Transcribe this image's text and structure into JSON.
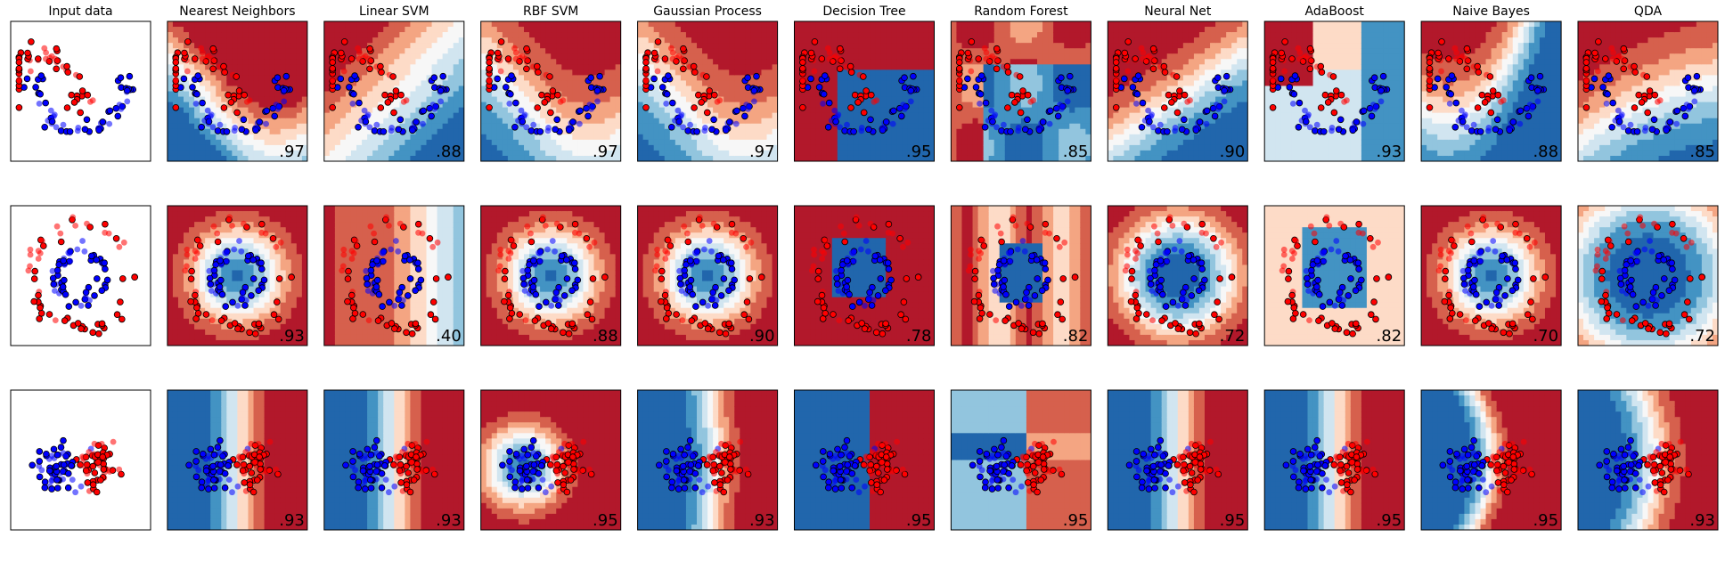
{
  "figure": {
    "columns": [
      "Input data",
      "Nearest Neighbors",
      "Linear SVM",
      "RBF SVM",
      "Gaussian Process",
      "Decision Tree",
      "Random Forest",
      "Neural Net",
      "AdaBoost",
      "Naive Bayes",
      "QDA"
    ],
    "rows": [
      {
        "dataset": "moons",
        "scores": [
          ".97",
          ".88",
          ".97",
          ".97",
          ".95",
          ".85",
          ".90",
          ".93",
          ".88",
          ".85"
        ]
      },
      {
        "dataset": "circles",
        "scores": [
          ".93",
          ".40",
          ".88",
          ".90",
          ".78",
          ".82",
          ".72",
          ".82",
          ".70",
          ".72"
        ]
      },
      {
        "dataset": "linear",
        "scores": [
          ".93",
          ".93",
          ".95",
          ".93",
          ".95",
          ".95",
          ".95",
          ".95",
          ".95",
          ".93"
        ]
      }
    ],
    "colors": {
      "class_red": "#ff0000",
      "class_blue": "#0000ff",
      "colormap": [
        "#2166ac",
        "#4393c3",
        "#92c5de",
        "#d1e5f0",
        "#f7f7f7",
        "#fddbc7",
        "#f4a582",
        "#d6604d",
        "#b2182b"
      ]
    }
  },
  "chart_data": [
    {
      "type": "scatter",
      "title": "Input data",
      "dataset": "moons",
      "grid": false
    },
    {
      "type": "heatmap",
      "title": "Nearest Neighbors",
      "dataset": "moons",
      "score": 0.97
    },
    {
      "type": "heatmap",
      "title": "Linear SVM",
      "dataset": "moons",
      "score": 0.88
    },
    {
      "type": "heatmap",
      "title": "RBF SVM",
      "dataset": "moons",
      "score": 0.97
    },
    {
      "type": "heatmap",
      "title": "Gaussian Process",
      "dataset": "moons",
      "score": 0.97
    },
    {
      "type": "heatmap",
      "title": "Decision Tree",
      "dataset": "moons",
      "score": 0.95
    },
    {
      "type": "heatmap",
      "title": "Random Forest",
      "dataset": "moons",
      "score": 0.85
    },
    {
      "type": "heatmap",
      "title": "Neural Net",
      "dataset": "moons",
      "score": 0.9
    },
    {
      "type": "heatmap",
      "title": "AdaBoost",
      "dataset": "moons",
      "score": 0.93
    },
    {
      "type": "heatmap",
      "title": "Naive Bayes",
      "dataset": "moons",
      "score": 0.88
    },
    {
      "type": "heatmap",
      "title": "QDA",
      "dataset": "moons",
      "score": 0.85
    },
    {
      "type": "scatter",
      "dataset": "circles",
      "grid": false
    },
    {
      "type": "heatmap",
      "dataset": "circles",
      "classifier": "Nearest Neighbors",
      "score": 0.93
    },
    {
      "type": "heatmap",
      "dataset": "circles",
      "classifier": "Linear SVM",
      "score": 0.4
    },
    {
      "type": "heatmap",
      "dataset": "circles",
      "classifier": "RBF SVM",
      "score": 0.88
    },
    {
      "type": "heatmap",
      "dataset": "circles",
      "classifier": "Gaussian Process",
      "score": 0.9
    },
    {
      "type": "heatmap",
      "dataset": "circles",
      "classifier": "Decision Tree",
      "score": 0.78
    },
    {
      "type": "heatmap",
      "dataset": "circles",
      "classifier": "Random Forest",
      "score": 0.82
    },
    {
      "type": "heatmap",
      "dataset": "circles",
      "classifier": "Neural Net",
      "score": 0.72
    },
    {
      "type": "heatmap",
      "dataset": "circles",
      "classifier": "AdaBoost",
      "score": 0.82
    },
    {
      "type": "heatmap",
      "dataset": "circles",
      "classifier": "Naive Bayes",
      "score": 0.7
    },
    {
      "type": "heatmap",
      "dataset": "circles",
      "classifier": "QDA",
      "score": 0.72
    },
    {
      "type": "scatter",
      "dataset": "linear",
      "grid": false
    },
    {
      "type": "heatmap",
      "dataset": "linear",
      "classifier": "Nearest Neighbors",
      "score": 0.93
    },
    {
      "type": "heatmap",
      "dataset": "linear",
      "classifier": "Linear SVM",
      "score": 0.93
    },
    {
      "type": "heatmap",
      "dataset": "linear",
      "classifier": "RBF SVM",
      "score": 0.95
    },
    {
      "type": "heatmap",
      "dataset": "linear",
      "classifier": "Gaussian Process",
      "score": 0.93
    },
    {
      "type": "heatmap",
      "dataset": "linear",
      "classifier": "Decision Tree",
      "score": 0.95
    },
    {
      "type": "heatmap",
      "dataset": "linear",
      "classifier": "Random Forest",
      "score": 0.95
    },
    {
      "type": "heatmap",
      "dataset": "linear",
      "classifier": "Neural Net",
      "score": 0.95
    },
    {
      "type": "heatmap",
      "dataset": "linear",
      "classifier": "AdaBoost",
      "score": 0.95
    },
    {
      "type": "heatmap",
      "dataset": "linear",
      "classifier": "Naive Bayes",
      "score": 0.95
    },
    {
      "type": "heatmap",
      "dataset": "linear",
      "classifier": "QDA",
      "score": 0.93
    }
  ]
}
